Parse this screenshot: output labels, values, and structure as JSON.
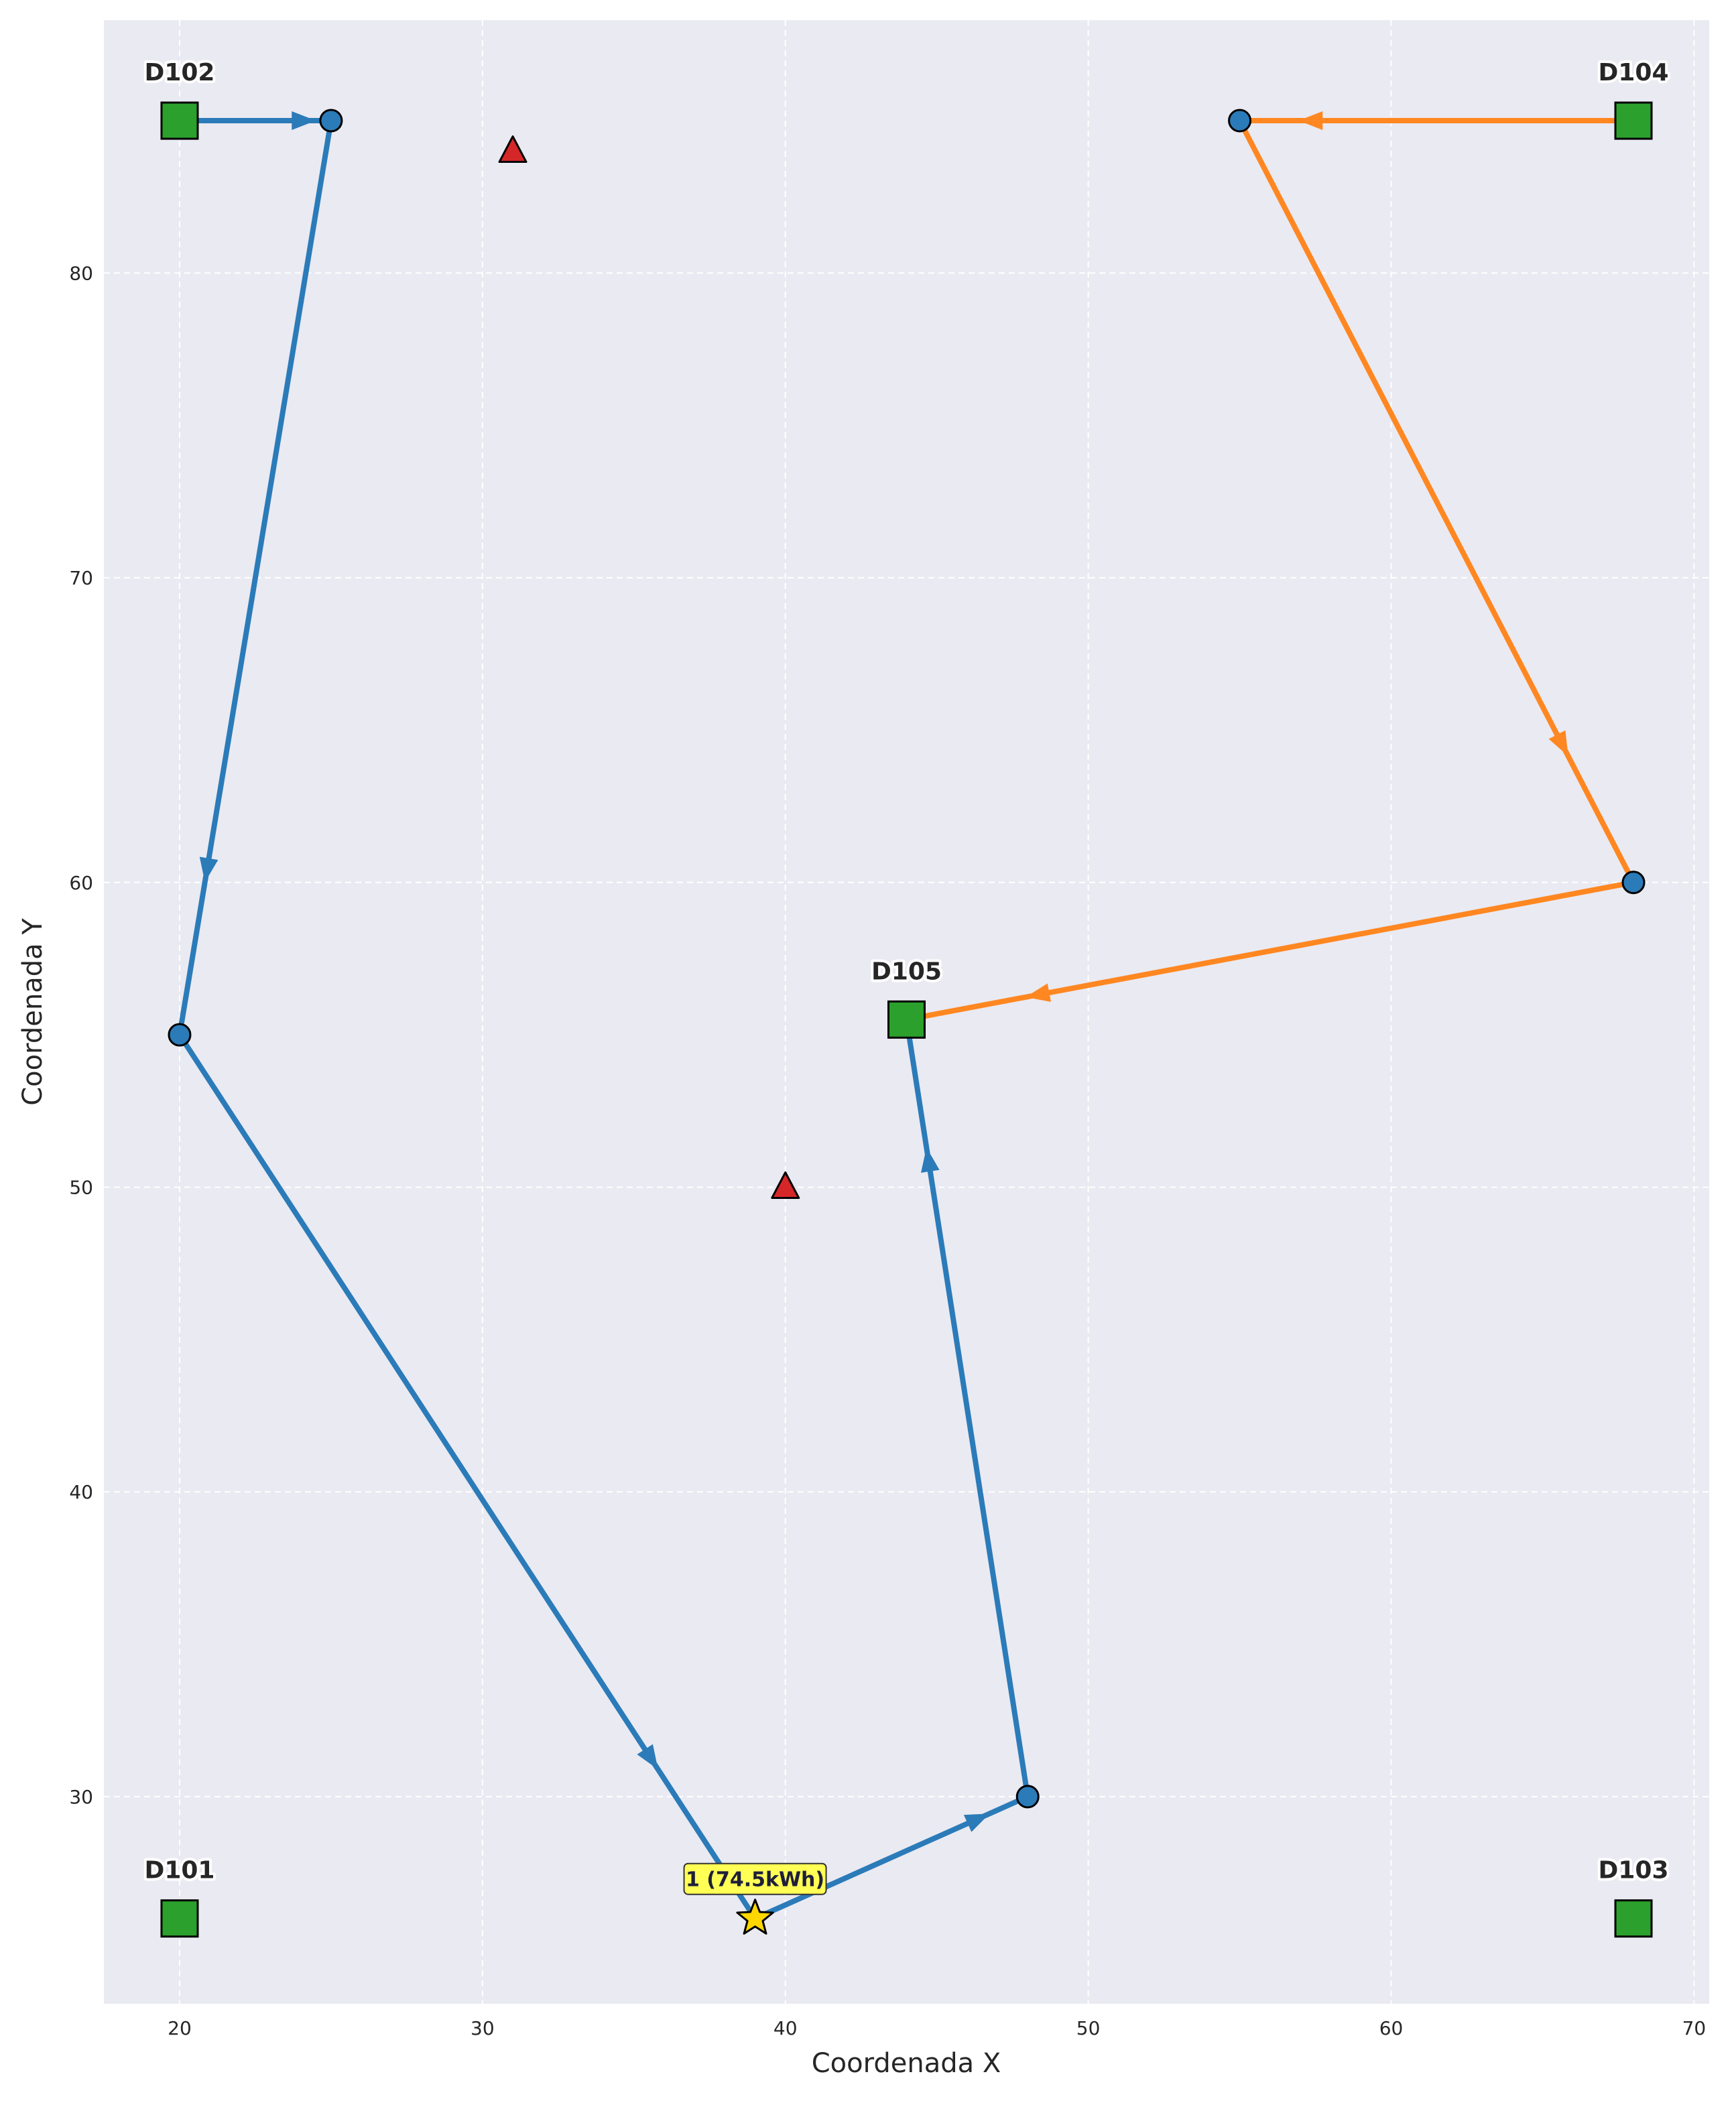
{
  "chart_data": {
    "type": "scatter",
    "title": "",
    "xlabel": "Coordenada X",
    "ylabel": "Coordenada Y",
    "xlim": [
      17.5,
      70.5
    ],
    "ylim": [
      23.2,
      88.3
    ],
    "xticks": [
      20,
      30,
      40,
      50,
      60,
      70
    ],
    "yticks": [
      30,
      40,
      50,
      60,
      70,
      80
    ],
    "grid": true,
    "background": "#eaeaf2",
    "depots": [
      {
        "label": "D101",
        "x": 20,
        "y": 26
      },
      {
        "label": "D102",
        "x": 20,
        "y": 85
      },
      {
        "label": "D103",
        "x": 68,
        "y": 26
      },
      {
        "label": "D104",
        "x": 68,
        "y": 85
      },
      {
        "label": "D105",
        "x": 44,
        "y": 55.5
      }
    ],
    "customers": [
      {
        "x": 25,
        "y": 85
      },
      {
        "x": 55,
        "y": 85
      },
      {
        "x": 68,
        "y": 60
      },
      {
        "x": 20,
        "y": 55
      },
      {
        "x": 48,
        "y": 30
      }
    ],
    "triangles": [
      {
        "x": 31,
        "y": 84
      },
      {
        "x": 40,
        "y": 50
      }
    ],
    "stations": [
      {
        "label": "1 (74.5kWh)",
        "x": 39,
        "y": 26
      }
    ],
    "routes": [
      {
        "color": "#2b7bb9",
        "points": [
          [
            20,
            85
          ],
          [
            25,
            85
          ],
          [
            20,
            55
          ],
          [
            39,
            26
          ],
          [
            48,
            30
          ],
          [
            44,
            55.5
          ]
        ]
      },
      {
        "color": "#ff8721",
        "points": [
          [
            68,
            85
          ],
          [
            55,
            85
          ],
          [
            68,
            60
          ],
          [
            44,
            55.5
          ]
        ]
      }
    ],
    "colors": {
      "depot": "#2ca02c",
      "customer": "#2b7bb9",
      "triangle": "#d62728",
      "station": "#ffd700"
    }
  }
}
